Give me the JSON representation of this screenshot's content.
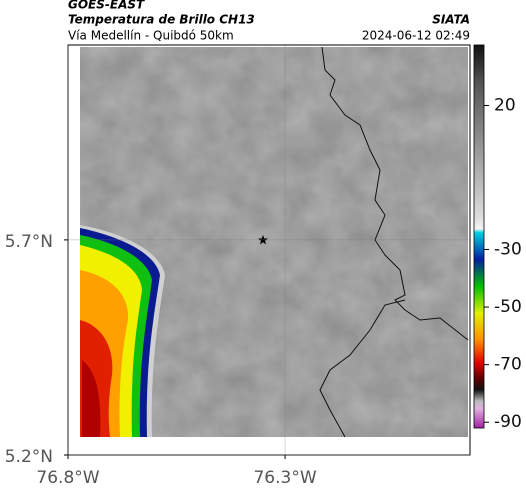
{
  "header": {
    "satellite": "GOES-EAST",
    "title": "Temperatura de Brillo CH13",
    "subtitle": "Vía Medellín - Quibdó 50km",
    "source": "SIATA",
    "timestamp": "2024-06-12 02:49"
  },
  "map": {
    "lon_range": [
      -76.8,
      -75.874
    ],
    "lat_range": [
      5.2,
      6.153
    ],
    "lon_ticks": [
      {
        "value": -76.8,
        "label": "76.8°W"
      },
      {
        "value": -76.3,
        "label": "76.3°W"
      }
    ],
    "lat_ticks": [
      {
        "value": 5.7,
        "label": "5.7°N"
      },
      {
        "value": 5.2,
        "label": "5.2°N"
      }
    ],
    "colorbar": {
      "range": [
        41,
        -92
      ],
      "ticks": [
        20,
        -30,
        -50,
        -70,
        -90
      ]
    }
  }
}
